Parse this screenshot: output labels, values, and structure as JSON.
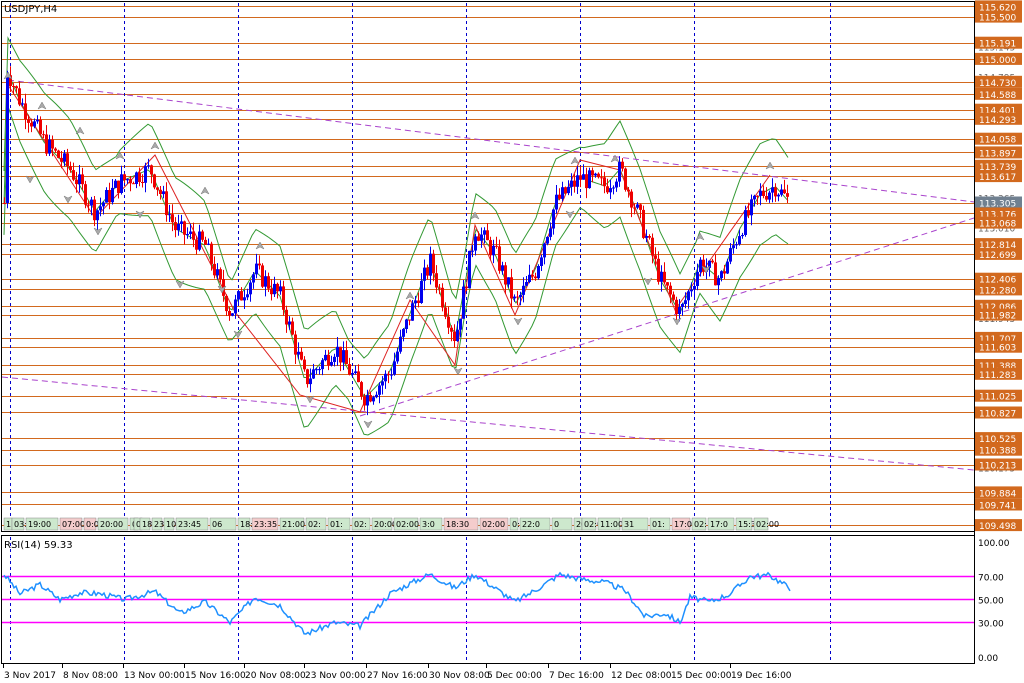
{
  "symbol_label": "USDJPY,H4",
  "rsi_label": "RSI(14) 59.33",
  "colors": {
    "grid": "#0000cc",
    "level": "#d2691e",
    "level_label_bg": "#d2691e",
    "current_price_bg": "#708090",
    "bull": "#0000ee",
    "bear": "#ee0000",
    "bollinger": "#339933",
    "trendline": "#aa44cc",
    "zigzag": "#dd2222",
    "rsi": "#1e90ff",
    "rsi_level": "#ff00ff",
    "fractal": "#a9a9a9",
    "session_bg": "#cde8cd",
    "session_bg_red": "#f4cccc"
  },
  "price_labels": [
    "115.620",
    "115.500",
    "115.191",
    "115.000",
    "114.730",
    "114.588",
    "114.401",
    "114.293",
    "114.058",
    "113.897",
    "113.739",
    "113.617",
    "113.305",
    "113.176",
    "113.068",
    "112.814",
    "112.699",
    "112.406",
    "112.280",
    "112.086",
    "111.982",
    "111.707",
    "111.603",
    "111.388",
    "111.283",
    "111.025",
    "110.827",
    "110.525",
    "110.388",
    "110.213",
    "109.884",
    "109.741",
    "109.498"
  ],
  "faint_axis_labels": [
    "115.145",
    "114.795",
    "113.365",
    "113.010",
    "112.735",
    "111.945",
    "110.810",
    "110.175"
  ],
  "current_price": "113.305",
  "rsi_axis_labels": [
    "100.00",
    "70.00",
    "50.00",
    "30.00",
    "0.00"
  ],
  "rsi_levels": [
    70,
    50,
    30
  ],
  "time_labels": [
    "3 Nov 2017",
    "8 Nov 08:00",
    "13 Nov 00:00",
    "15 Nov 16:00",
    "20 Nov 08:00",
    "23 Nov 00:00",
    "27 Nov 16:00",
    "30 Nov 08:00",
    "5 Dec 00:00",
    "7 Dec 16:00",
    "12 Dec 08:00",
    "15 Dec 00:00",
    "19 Dec 16:00"
  ],
  "session_boxes": [
    "1",
    "03:",
    "19:00",
    "07:00",
    "0:00",
    "20:00",
    "0",
    "0",
    "18:3",
    "23",
    "10:00",
    "23:45",
    "06",
    "18:30",
    "23:35",
    "21:00",
    "02:",
    "01:",
    "02:",
    "20:00",
    "02:00",
    "3:0",
    "18:30",
    "02:00",
    "0:00",
    "22:0",
    "0",
    "20",
    "02:00",
    "11:00",
    "31",
    "01:",
    "17:00",
    "02:",
    "17:0",
    "15:30",
    "02:00"
  ],
  "chart_data": {
    "type": "candlestick",
    "title": "USDJPY,H4",
    "yrange": [
      109.44,
      115.66
    ],
    "rsi_range": [
      0,
      100
    ],
    "ohlc_approx": [
      {
        "time": "3 Nov 2017",
        "price": 114.3
      },
      {
        "time": "8 Nov 08:00",
        "price": 113.75
      },
      {
        "time": "13 Nov 00:00",
        "price": 113.55
      },
      {
        "time": "15 Nov 16:00",
        "price": 112.9
      },
      {
        "time": "20 Nov 08:00",
        "price": 112.15
      },
      {
        "time": "23 Nov 00:00",
        "price": 111.25
      },
      {
        "time": "27 Nov 16:00",
        "price": 111.3
      },
      {
        "time": "30 Nov 08:00",
        "price": 112.35
      },
      {
        "time": "5 Dec 00:00",
        "price": 112.5
      },
      {
        "time": "7 Dec 16:00",
        "price": 113.55
      },
      {
        "time": "12 Dec 08:00",
        "price": 112.6
      },
      {
        "time": "15 Dec 00:00",
        "price": 112.45
      },
      {
        "time": "19 Dec 16:00",
        "price": 113.3
      }
    ],
    "rsi_approx": [
      70,
      48,
      52,
      38,
      35,
      24,
      42,
      68,
      55,
      72,
      60,
      38,
      72
    ]
  }
}
